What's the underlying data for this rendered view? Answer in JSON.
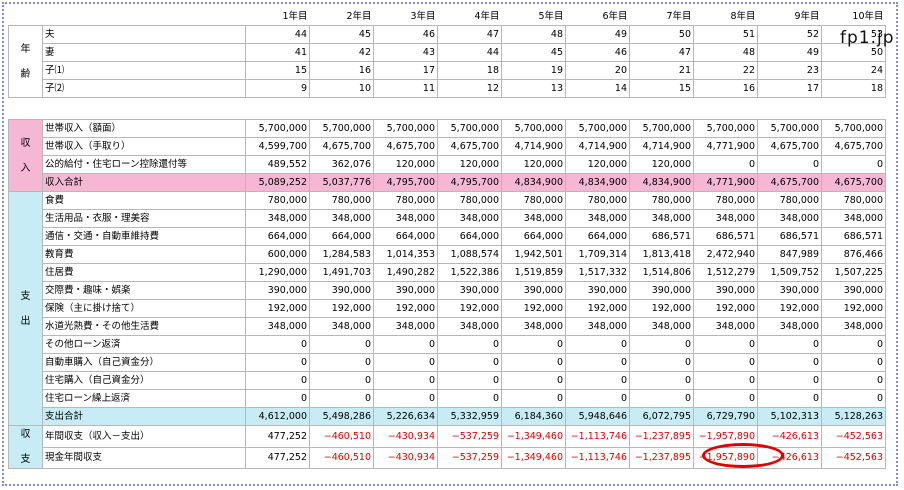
{
  "header": {
    "years": [
      "1年目",
      "2年目",
      "3年目",
      "4年目",
      "5年目",
      "6年目",
      "7年目",
      "8年目",
      "9年目",
      "10年目"
    ]
  },
  "age": {
    "category": [
      "年",
      "齢"
    ],
    "rows": [
      {
        "label": "夫",
        "values": [
          "44",
          "45",
          "46",
          "47",
          "48",
          "49",
          "50",
          "51",
          "52",
          "53"
        ]
      },
      {
        "label": "妻",
        "values": [
          "41",
          "42",
          "43",
          "44",
          "45",
          "46",
          "47",
          "48",
          "49",
          "50"
        ]
      },
      {
        "label": "子⑴",
        "values": [
          "15",
          "16",
          "17",
          "18",
          "19",
          "20",
          "21",
          "22",
          "23",
          "24"
        ]
      },
      {
        "label": "子⑵",
        "values": [
          "9",
          "10",
          "11",
          "12",
          "13",
          "14",
          "15",
          "16",
          "17",
          "18"
        ]
      }
    ]
  },
  "income": {
    "category": [
      "収",
      "入"
    ],
    "rows": [
      {
        "label": "世帯収入（額面）",
        "values": [
          "5,700,000",
          "5,700,000",
          "5,700,000",
          "5,700,000",
          "5,700,000",
          "5,700,000",
          "5,700,000",
          "5,700,000",
          "5,700,000",
          "5,700,000"
        ]
      },
      {
        "label": "世帯収入（手取り）",
        "values": [
          "4,599,700",
          "4,675,700",
          "4,675,700",
          "4,675,700",
          "4,714,900",
          "4,714,900",
          "4,714,900",
          "4,771,900",
          "4,675,700",
          "4,675,700"
        ]
      },
      {
        "label": "公的給付・住宅ローン控除還付等",
        "values": [
          "489,552",
          "362,076",
          "120,000",
          "120,000",
          "120,000",
          "120,000",
          "120,000",
          "0",
          "0",
          "0"
        ]
      }
    ],
    "total": {
      "label": "収入合計",
      "values": [
        "5,089,252",
        "5,037,776",
        "4,795,700",
        "4,795,700",
        "4,834,900",
        "4,834,900",
        "4,834,900",
        "4,771,900",
        "4,675,700",
        "4,675,700"
      ]
    }
  },
  "expense": {
    "category": [
      "支",
      "出"
    ],
    "rows": [
      {
        "label": "食費",
        "values": [
          "780,000",
          "780,000",
          "780,000",
          "780,000",
          "780,000",
          "780,000",
          "780,000",
          "780,000",
          "780,000",
          "780,000"
        ]
      },
      {
        "label": "生活用品・衣服・理美容",
        "values": [
          "348,000",
          "348,000",
          "348,000",
          "348,000",
          "348,000",
          "348,000",
          "348,000",
          "348,000",
          "348,000",
          "348,000"
        ]
      },
      {
        "label": "通信・交通・自動車維持費",
        "values": [
          "664,000",
          "664,000",
          "664,000",
          "664,000",
          "664,000",
          "664,000",
          "686,571",
          "686,571",
          "686,571",
          "686,571"
        ]
      },
      {
        "label": "教育費",
        "values": [
          "600,000",
          "1,284,583",
          "1,014,353",
          "1,088,574",
          "1,942,501",
          "1,709,314",
          "1,813,418",
          "2,472,940",
          "847,989",
          "876,466"
        ]
      },
      {
        "label": "住居費",
        "values": [
          "1,290,000",
          "1,491,703",
          "1,490,282",
          "1,522,386",
          "1,519,859",
          "1,517,332",
          "1,514,806",
          "1,512,279",
          "1,509,752",
          "1,507,225"
        ]
      },
      {
        "label": "交際費・趣味・娯楽",
        "values": [
          "390,000",
          "390,000",
          "390,000",
          "390,000",
          "390,000",
          "390,000",
          "390,000",
          "390,000",
          "390,000",
          "390,000"
        ]
      },
      {
        "label": "保険（主に掛け捨て）",
        "values": [
          "192,000",
          "192,000",
          "192,000",
          "192,000",
          "192,000",
          "192,000",
          "192,000",
          "192,000",
          "192,000",
          "192,000"
        ]
      },
      {
        "label": "水道光熱費・その他生活費",
        "values": [
          "348,000",
          "348,000",
          "348,000",
          "348,000",
          "348,000",
          "348,000",
          "348,000",
          "348,000",
          "348,000",
          "348,000"
        ]
      },
      {
        "label": "その他ローン返済",
        "values": [
          "0",
          "0",
          "0",
          "0",
          "0",
          "0",
          "0",
          "0",
          "0",
          "0"
        ]
      },
      {
        "label": "自動車購入（自己資金分）",
        "values": [
          "0",
          "0",
          "0",
          "0",
          "0",
          "0",
          "0",
          "0",
          "0",
          "0"
        ]
      },
      {
        "label": "住宅購入（自己資金分）",
        "values": [
          "0",
          "0",
          "0",
          "0",
          "0",
          "0",
          "0",
          "0",
          "0",
          "0"
        ]
      },
      {
        "label": "住宅ローン繰上返済",
        "values": [
          "0",
          "0",
          "0",
          "0",
          "0",
          "0",
          "0",
          "0",
          "0",
          "0"
        ]
      }
    ],
    "total": {
      "label": "支出合計",
      "values": [
        "4,612,000",
        "5,498,286",
        "5,226,634",
        "5,332,959",
        "6,184,360",
        "5,948,646",
        "6,072,795",
        "6,729,790",
        "5,102,313",
        "5,128,263"
      ]
    }
  },
  "balance": {
    "category": [
      "収",
      "支"
    ],
    "rows": [
      {
        "label": "年間収支（収入－支出）",
        "values": [
          "477,252",
          "−460,510",
          "−430,934",
          "−537,259",
          "−1,349,460",
          "−1,113,746",
          "−1,237,895",
          "−1,957,890",
          "−426,613",
          "−452,563"
        ]
      },
      {
        "label": "現金年間収支",
        "values": [
          "477,252",
          "−460,510",
          "−430,934",
          "−537,259",
          "−1,349,460",
          "−1,113,746",
          "−1,237,895",
          "−1,957,890",
          "−426,613",
          "−452,563"
        ]
      }
    ]
  },
  "watermark": "fp1.jp",
  "colors": {
    "pink": "#f6b7d4",
    "cyan": "#c7ecf5",
    "negative": "#e00000",
    "highlight_circle": "#e00000"
  }
}
